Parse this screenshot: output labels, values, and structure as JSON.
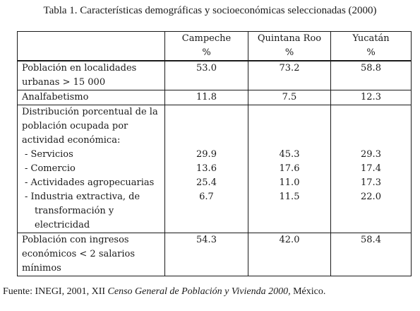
{
  "caption": "Tabla 1. Características demográficas y socioeconómicas seleccionadas (2000)",
  "table": {
    "columns": [
      "Campeche",
      "Quintana Roo",
      "Yucatán"
    ],
    "unit": "%",
    "rows": {
      "poblacion_urbana": {
        "label_lines": [
          "Población en localidades",
          "urbanas > 15 000"
        ],
        "values": [
          "53.0",
          "73.2",
          "58.8"
        ]
      },
      "analfabetismo": {
        "label": "Analfabetismo",
        "values": [
          "11.8",
          "7.5",
          "12.3"
        ]
      },
      "distribucion": {
        "label_lines": [
          "Distribución porcentual de la",
          "población ocupada por",
          "actividad económica:"
        ],
        "sub_rows": {
          "servicios": {
            "label": "- Servicios",
            "values": [
              "29.9",
              "45.3",
              "29.3"
            ]
          },
          "comercio": {
            "label": "- Comercio",
            "values": [
              "13.6",
              "17.6",
              "17.4"
            ]
          },
          "agropecuarias": {
            "label": "- Actividades agropecuarias",
            "values": [
              "25.4",
              "11.0",
              "17.3"
            ]
          },
          "industria": {
            "label_lines": [
              "- Industria extractiva, de",
              "transformación y",
              "electricidad"
            ],
            "values": [
              "6.7",
              "11.5",
              "22.0"
            ]
          }
        }
      },
      "ingresos": {
        "label_lines": [
          "Población con ingresos",
          "económicos < 2 salarios",
          "mínimos"
        ],
        "values": [
          "54.3",
          "42.0",
          "58.4"
        ]
      }
    }
  },
  "source": {
    "prefix": "Fuente: INEGI, 2001, XII ",
    "title": "Censo General de Población y Vivienda 2000,",
    "suffix": " México."
  }
}
